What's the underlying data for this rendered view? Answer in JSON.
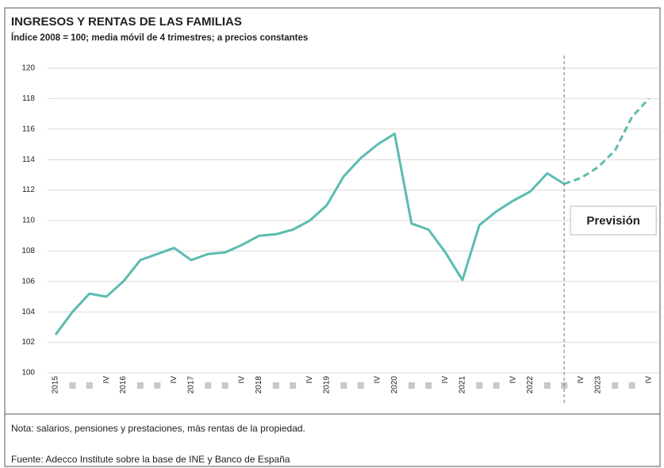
{
  "chart_data": {
    "type": "line",
    "title": "INGRESOS Y RENTAS DE LAS FAMILIAS",
    "subtitle": "Índice 2008 = 100; media móvil de 4 trimestres; a precios constantes",
    "categories": [
      "2015",
      null,
      null,
      "IV",
      "2016",
      null,
      null,
      "IV",
      "2017",
      null,
      null,
      "IV",
      "2018",
      null,
      null,
      "IV",
      "2019",
      null,
      null,
      "IV",
      "2020",
      null,
      null,
      "IV",
      "2021",
      null,
      null,
      "IV",
      "2022",
      null,
      null,
      "IV",
      "2023",
      null,
      null,
      "IV"
    ],
    "series": [
      {
        "color": "#5bbcb0",
        "style": "solid",
        "values": [
          102.5,
          104.0,
          105.2,
          105.0,
          106.0,
          107.4,
          107.8,
          108.2,
          107.4,
          107.8,
          107.9,
          108.4,
          109.0,
          109.1,
          109.4,
          110.0,
          111.0,
          112.9,
          114.1,
          115.0,
          115.7,
          109.8,
          109.4,
          107.9,
          106.1,
          109.7,
          110.6,
          111.3,
          111.9,
          113.1,
          112.4,
          null,
          null,
          null,
          null,
          null
        ]
      },
      {
        "color": "#5bbcb0",
        "style": "dashed",
        "values": [
          null,
          null,
          null,
          null,
          null,
          null,
          null,
          null,
          null,
          null,
          null,
          null,
          null,
          null,
          null,
          null,
          null,
          null,
          null,
          null,
          null,
          null,
          null,
          null,
          null,
          null,
          null,
          null,
          null,
          null,
          112.4,
          112.8,
          113.5,
          114.6,
          116.8,
          118.0
        ]
      }
    ],
    "annotation": "Previsión",
    "ylim": [
      100,
      120
    ],
    "yticks": [
      100,
      102,
      104,
      106,
      108,
      110,
      112,
      114,
      116,
      118,
      120
    ],
    "grid": true,
    "note": "Nota: salarios, pensiones y prestaciones, más rentas de la propiedad.",
    "source": "Fuente: Adecco Institute sobre la base de INE y Banco de España"
  }
}
